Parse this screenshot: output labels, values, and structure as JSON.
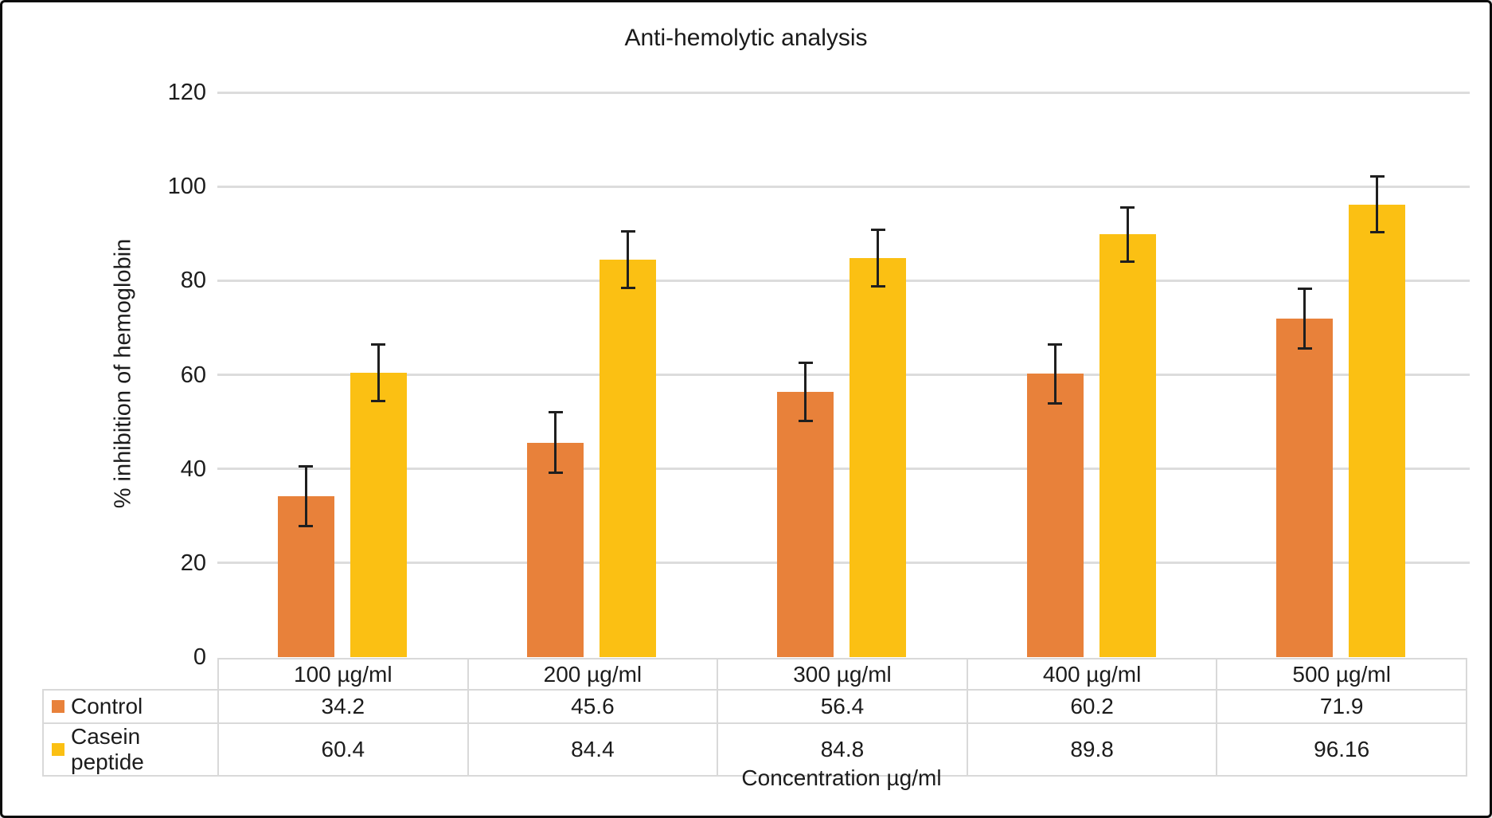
{
  "chart_data": {
    "type": "bar",
    "title": "Anti-hemolytic analysis",
    "xlabel": "Concentration µg/ml",
    "ylabel": "% inhibition of hemoglobin",
    "ylim": [
      0,
      120
    ],
    "ytick_step": 20,
    "yticks": [
      0,
      20,
      40,
      60,
      80,
      100,
      120
    ],
    "categories": [
      "100 µg/ml",
      "200 µg/ml",
      "300 µg/ml",
      "400 µg/ml",
      "500 µg/ml"
    ],
    "series": [
      {
        "name": "Control",
        "color": "#E8813A",
        "values": [
          34.2,
          45.6,
          56.4,
          60.2,
          71.9
        ],
        "errors": [
          6.5,
          6.5,
          6.3,
          6.4,
          6.4
        ]
      },
      {
        "name": "Casein peptide",
        "color": "#FBC013",
        "values": [
          60.4,
          84.4,
          84.8,
          89.8,
          96.16
        ],
        "errors": [
          6.1,
          6.1,
          6.1,
          5.9,
          6.0
        ]
      }
    ],
    "grid": "horizontal",
    "legend_position": "table-left",
    "error_bars": true
  }
}
